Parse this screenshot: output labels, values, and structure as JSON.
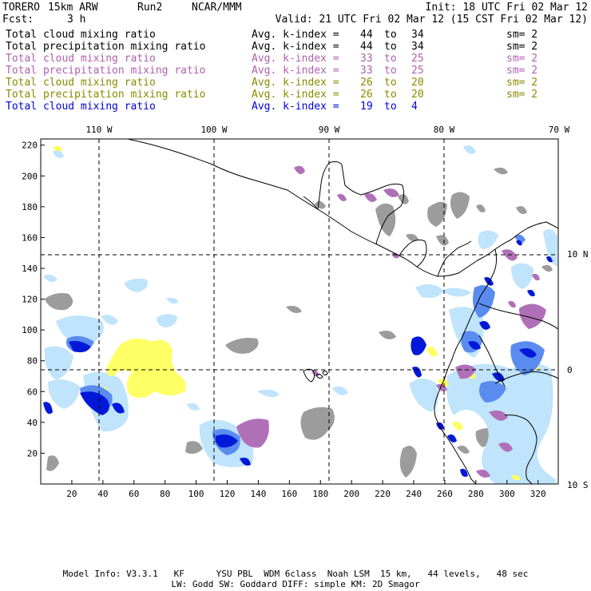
{
  "header": {
    "model": "TORERO",
    "resolution": "15km ARW",
    "run": "Run2",
    "org": "NCAR/MMM",
    "init": "Init: 18 UTC Fri 02 Mar 12",
    "fcst_label": "Fcst:",
    "fcst_value": "3 h",
    "valid": "Valid: 21 UTC Fri 02 Mar 12 (15 CST Fri 02 Mar 12)"
  },
  "legend": [
    {
      "name": "Total cloud mixing ratio",
      "kidx_label": "Avg. k-index =",
      "from": "44",
      "to_word": "to",
      "to": "34",
      "sm": "sm= 2",
      "color": "#000000"
    },
    {
      "name": "Total precipitation mixing ratio",
      "kidx_label": "Avg. k-index =",
      "from": "44",
      "to_word": "to",
      "to": "34",
      "sm": "sm= 2",
      "color": "#000000"
    },
    {
      "name": "Total cloud mixing ratio",
      "kidx_label": "Avg. k-index =",
      "from": "33",
      "to_word": "to",
      "to": "25",
      "sm": "sm= 2",
      "color": "#b060b0"
    },
    {
      "name": "Total precipitation mixing ratio",
      "kidx_label": "Avg. k-index =",
      "from": "33",
      "to_word": "to",
      "to": "25",
      "sm": "sm= 2",
      "color": "#b060b0"
    },
    {
      "name": "Total cloud mixing ratio",
      "kidx_label": "Avg. k-index =",
      "from": "26",
      "to_word": "to",
      "to": "20",
      "sm": "sm= 2",
      "color": "#8a8a00"
    },
    {
      "name": "Total precipitation mixing ratio",
      "kidx_label": "Avg. k-index =",
      "from": "26",
      "to_word": "to",
      "to": "20",
      "sm": "sm= 2",
      "color": "#8a8a00"
    },
    {
      "name": "Total cloud mixing ratio",
      "kidx_label": "Avg. k-index =",
      "from": "19",
      "to_word": "to",
      "to": "4",
      "sm": "",
      "color": "#0000dd"
    }
  ],
  "map": {
    "lon_labels": [
      "110 W",
      "100 W",
      "90 W",
      "80 W",
      "70 W"
    ],
    "lat_labels": [
      "10 N",
      "0",
      "10 S"
    ],
    "x_ticks": [
      "20",
      "40",
      "60",
      "80",
      "100",
      "120",
      "140",
      "160",
      "180",
      "200",
      "220",
      "240",
      "260",
      "280",
      "300",
      "320"
    ],
    "y_ticks": [
      "20",
      "40",
      "60",
      "80",
      "100",
      "120",
      "140",
      "160",
      "180",
      "200",
      "220"
    ],
    "grid_x": [
      40,
      113,
      185,
      261
    ],
    "grid_y": [
      76,
      150
    ],
    "x_range": [
      0,
      333
    ],
    "y_range": [
      0,
      224
    ],
    "colors": {
      "gray": "#9c9c9c",
      "purple": "#b070b8",
      "yellow": "#ffff66",
      "blue_dark": "#0018d8",
      "blue_mid": "#5a8cf0",
      "blue_light": "#bfe4fb",
      "land": "#000000"
    }
  },
  "footer": {
    "line1": "Model Info: V3.3.1   KF      YSU PBL  WDM 6class  Noah LSM  15 km,   44 levels,   48 sec",
    "line2": "LW: Godd SW: Goddard DIFF: simple KM: 2D Smagor"
  }
}
